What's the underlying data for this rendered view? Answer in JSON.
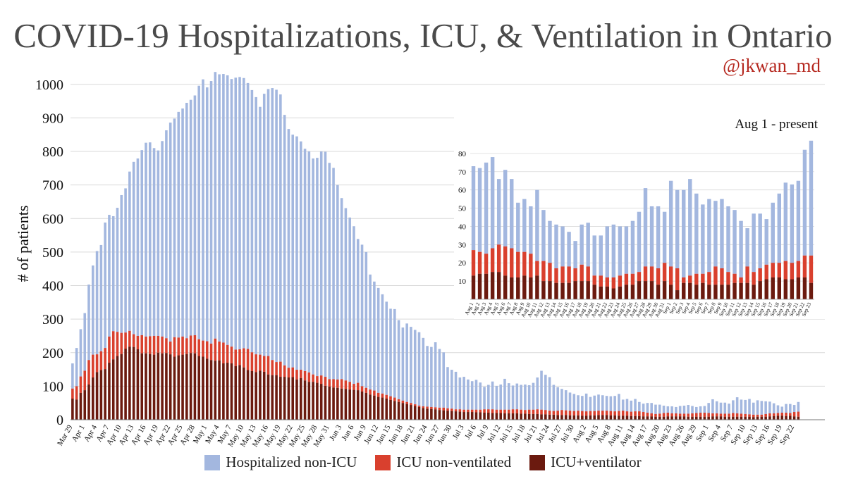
{
  "title": "COVID-19 Hospitalizations, ICU, & Ventilation in Ontario",
  "handle": "@jkwan_md",
  "colors": {
    "hospitalized_non_icu": "#a3b7df",
    "icu_non_ventilated": "#d9402e",
    "icu_ventilator": "#6b1a0f",
    "grid": "#d9d9d9"
  },
  "legend": [
    {
      "label": "Hospitalized non-ICU",
      "color": "#a3b7df"
    },
    {
      "label": "ICU non-ventilated",
      "color": "#d9402e"
    },
    {
      "label": "ICU+ventilator",
      "color": "#6b1a0f"
    }
  ],
  "chart_data": [
    {
      "type": "bar",
      "stacked": true,
      "title": "COVID-19 Hospitalizations, ICU, & Ventilation in Ontario",
      "ylabel": "# of patients",
      "ylim": [
        0,
        1050
      ],
      "yticks": [
        0,
        100,
        200,
        300,
        400,
        500,
        600,
        700,
        800,
        900,
        1000
      ],
      "grid": true,
      "legend_position": "bottom",
      "start_date": "Mar 29",
      "x_tick_labels": [
        "Mar 29",
        "Apr 1",
        "Apr 4",
        "Apr 7",
        "Apr 10",
        "Apr 13",
        "Apr 16",
        "Apr 19",
        "Apr 22",
        "Apr 25",
        "Apr 28",
        "May 1",
        "May 4",
        "May 7",
        "May 10",
        "May 13",
        "May 16",
        "May 19",
        "May 22",
        "May 25",
        "May 28",
        "May 31",
        "Jun 3",
        "Jun 6",
        "Jun 9",
        "Jun 12",
        "Jun 15",
        "Jun 18",
        "Jun 21",
        "Jun 24",
        "Jun 27",
        "Jun 30",
        "Jul 3",
        "Jul 6",
        "Jul 9",
        "Jul 12",
        "Jul 15",
        "Jul 18",
        "Jul 21",
        "Jul 24",
        "Jul 27",
        "Jul 30",
        "Aug 2",
        "Aug 5",
        "Aug 8",
        "Aug 11",
        "Aug 14",
        "Aug 17",
        "Aug 20",
        "Aug 23",
        "Aug 26",
        "Aug 29",
        "Sep 1",
        "Sep 4",
        "Sep 7",
        "Sep 10",
        "Sep 13",
        "Sep 16",
        "Sep 19",
        "Sep 22"
      ],
      "series": [
        {
          "name": "Hospitalized non-ICU",
          "key": "hosp"
        },
        {
          "name": "ICU non-ventilated",
          "key": "icu"
        },
        {
          "name": "ICU+ventilator",
          "key": "vent"
        }
      ],
      "total_hospitalized": [
        168,
        214,
        270,
        318,
        403,
        460,
        503,
        521,
        588,
        611,
        607,
        632,
        670,
        690,
        740,
        769,
        779,
        804,
        826,
        827,
        810,
        803,
        831,
        863,
        886,
        898,
        918,
        928,
        945,
        954,
        967,
        996,
        1015,
        991,
        1010,
        1037,
        1030,
        1031,
        1027,
        1016,
        1020,
        1022,
        1019,
        1004,
        983,
        962,
        933,
        972,
        986,
        989,
        984,
        970,
        909,
        867,
        850,
        845,
        830,
        808,
        800,
        779,
        781,
        800,
        799,
        766,
        751,
        700,
        661,
        631,
        603,
        577,
        539,
        522,
        500,
        433,
        412,
        393,
        374,
        352,
        331,
        330,
        297,
        275,
        287,
        277,
        268,
        261,
        244,
        220,
        217,
        231,
        211,
        201,
        157,
        149,
        143,
        126,
        128,
        120,
        115,
        119,
        111,
        98,
        104,
        114,
        101,
        105,
        122,
        109,
        102,
        108,
        104,
        105,
        103,
        110,
        126,
        146,
        134,
        127,
        104,
        97,
        92,
        88,
        81,
        77,
        73,
        71,
        78,
        68,
        72,
        75,
        73,
        71,
        70,
        71,
        77,
        60,
        62,
        57,
        62,
        53,
        48,
        50,
        50,
        45,
        45,
        42,
        40,
        40,
        38,
        41,
        42,
        44,
        41,
        38,
        40,
        41,
        50,
        61,
        55,
        51,
        51,
        48,
        58,
        67,
        60,
        59,
        62,
        51,
        58,
        56,
        55,
        54,
        49,
        43,
        39,
        47,
        47,
        44,
        53,
        60,
        64,
        63,
        65,
        82,
        87
      ],
      "icu_total": [
        93,
        100,
        129,
        146,
        178,
        194,
        195,
        204,
        214,
        248,
        264,
        262,
        259,
        260,
        265,
        255,
        250,
        252,
        248,
        249,
        250,
        250,
        248,
        243,
        233,
        246,
        245,
        248,
        243,
        251,
        252,
        240,
        236,
        234,
        227,
        242,
        233,
        230,
        223,
        218,
        209,
        210,
        213,
        211,
        201,
        195,
        194,
        190,
        190,
        178,
        172,
        173,
        162,
        155,
        156,
        149,
        149,
        145,
        141,
        135,
        130,
        132,
        128,
        121,
        121,
        120,
        121,
        117,
        113,
        107,
        110,
        100,
        95,
        90,
        87,
        80,
        78,
        74,
        70,
        66,
        61,
        57,
        53,
        50,
        46,
        42,
        40,
        39,
        38,
        37,
        36,
        36,
        34,
        33,
        31,
        31,
        30,
        30,
        30,
        30,
        30,
        31,
        31,
        31,
        30,
        30,
        30,
        30,
        31,
        31,
        30,
        29,
        30,
        30,
        31,
        30,
        29,
        27,
        26,
        27,
        29,
        28,
        27,
        26,
        27,
        26,
        25,
        26,
        26,
        27,
        27,
        27,
        26,
        25,
        26,
        27,
        25,
        24,
        25,
        25,
        23,
        21,
        19,
        17,
        18,
        20,
        21,
        19,
        19,
        18,
        18,
        18,
        19,
        20,
        21,
        21,
        20,
        19,
        19,
        18,
        18,
        18,
        20,
        19,
        18,
        17,
        16,
        15,
        15,
        15,
        17,
        19,
        19,
        20,
        21,
        21,
        20,
        23,
        24
      ],
      "ventilator": [
        63,
        60,
        80,
        88,
        105,
        126,
        142,
        148,
        151,
        170,
        180,
        190,
        196,
        212,
        218,
        217,
        210,
        198,
        198,
        196,
        194,
        200,
        198,
        199,
        195,
        188,
        192,
        194,
        196,
        199,
        198,
        190,
        188,
        182,
        178,
        176,
        177,
        168,
        170,
        168,
        160,
        163,
        156,
        148,
        145,
        142,
        146,
        143,
        135,
        133,
        133,
        128,
        128,
        126,
        127,
        120,
        124,
        117,
        113,
        113,
        110,
        107,
        101,
        99,
        96,
        95,
        93,
        92,
        90,
        89,
        88,
        84,
        80,
        75,
        72,
        68,
        66,
        63,
        59,
        56,
        53,
        50,
        47,
        44,
        41,
        38,
        35,
        33,
        32,
        31,
        29,
        28,
        27,
        26,
        25,
        24,
        23,
        23,
        23,
        22,
        22,
        21,
        21,
        20,
        20,
        20,
        19,
        19,
        19,
        19,
        18,
        18,
        17,
        17,
        17,
        16,
        16,
        15,
        15,
        14,
        14,
        14,
        13,
        13,
        13,
        12,
        12,
        13,
        13,
        14,
        14,
        14,
        13,
        13,
        12,
        12,
        12,
        11,
        11,
        11,
        10,
        10,
        10,
        9,
        9,
        9,
        10,
        10,
        10,
        10,
        10,
        9,
        9,
        9,
        9,
        9,
        9,
        10,
        10,
        10,
        9,
        9,
        9,
        9,
        9,
        9,
        9,
        8,
        9,
        9,
        9,
        10,
        11,
        12,
        12,
        11,
        12,
        10,
        9
      ]
    },
    {
      "type": "bar",
      "stacked": true,
      "title": "Aug 1 - present",
      "ylim": [
        0,
        90
      ],
      "yticks": [
        10,
        20,
        30,
        40,
        50,
        60,
        70,
        80
      ],
      "grid": true,
      "categories": [
        "Aug 1",
        "Aug 2",
        "Aug 3",
        "Aug 4",
        "Aug 5",
        "Aug 6",
        "Aug 7",
        "Aug 8",
        "Aug 9",
        "Aug 10",
        "Aug 11",
        "Aug 12",
        "Aug 13",
        "Aug 14",
        "Aug 15",
        "Aug 16",
        "Aug 17",
        "Aug 18",
        "Aug 19",
        "Aug 20",
        "Aug 21",
        "Aug 22",
        "Aug 23",
        "Aug 24",
        "Aug 25",
        "Aug 26",
        "Aug 27",
        "Aug 28",
        "Aug 29",
        "Aug 30",
        "Aug 31",
        "Sep 1",
        "Sep 2",
        "Sep 3",
        "Sep 4",
        "Sep 5",
        "Sep 6",
        "Sep 7",
        "Sep 8",
        "Sep 9",
        "Sep 10",
        "Sep 11",
        "Sep 12",
        "Sep 13",
        "Sep 14",
        "Sep 15",
        "Sep 16",
        "Sep 17",
        "Sep 18",
        "Sep 19",
        "Sep 20",
        "Sep 21",
        "Sep 22",
        "Sep 23"
      ],
      "total_hospitalized": [
        73,
        72,
        75,
        78,
        66,
        71,
        66,
        53,
        55,
        51,
        60,
        49,
        43,
        41,
        40,
        37,
        32,
        41,
        42,
        35,
        35,
        40,
        41,
        40,
        40,
        43,
        48,
        61,
        51,
        51,
        48,
        65,
        60,
        60,
        66,
        58,
        52,
        55,
        54,
        55,
        51,
        49,
        43,
        39,
        47,
        47,
        44,
        53,
        58,
        64,
        63,
        65,
        82,
        87
      ],
      "icu_total": [
        27,
        26,
        25,
        28,
        30,
        29,
        28,
        26,
        26,
        25,
        21,
        21,
        20,
        17,
        18,
        18,
        17,
        19,
        18,
        13,
        13,
        12,
        12,
        13,
        14,
        14,
        15,
        18,
        18,
        17,
        20,
        18,
        17,
        12,
        13,
        14,
        14,
        15,
        18,
        17,
        15,
        14,
        12,
        18,
        15,
        17,
        19,
        20,
        20,
        21,
        20,
        21,
        24,
        24
      ],
      "ventilator": [
        13,
        14,
        14,
        15,
        15,
        13,
        12,
        12,
        13,
        12,
        13,
        10,
        10,
        9,
        9,
        9,
        10,
        10,
        10,
        8,
        7,
        7,
        6,
        7,
        8,
        8,
        10,
        10,
        10,
        8,
        10,
        8,
        5,
        9,
        9,
        8,
        9,
        8,
        8,
        8,
        8,
        9,
        9,
        9,
        8,
        10,
        11,
        12,
        12,
        11,
        11,
        12,
        12,
        9
      ]
    }
  ]
}
